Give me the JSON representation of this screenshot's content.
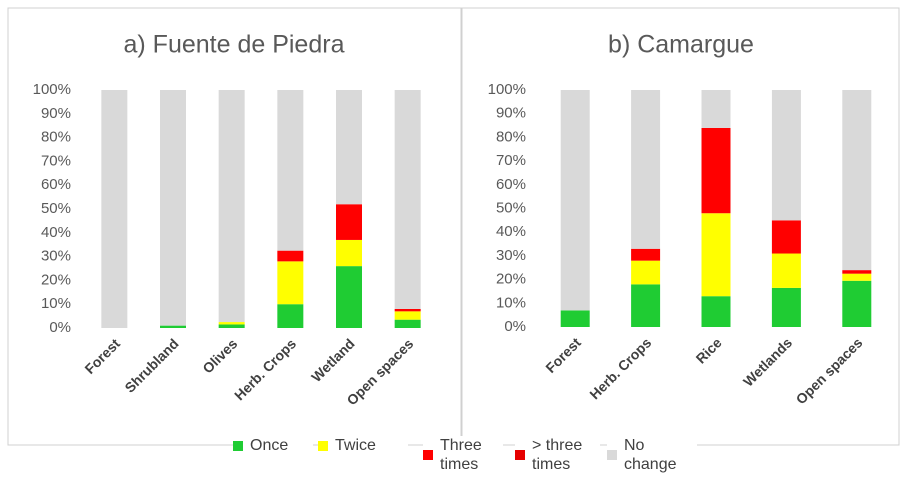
{
  "chart_data": [
    {
      "type": "stacked_bar",
      "title": "a) Fuente de Piedra",
      "categories": [
        "Forest",
        "Shrubland",
        "Olives",
        "Herb. Crops",
        "Wetland",
        "Open spaces"
      ],
      "series": [
        {
          "name": "Once",
          "color": "#1fcc33",
          "values": [
            0,
            1,
            1.5,
            10,
            26,
            3.5
          ]
        },
        {
          "name": "Twice",
          "color": "#ffff00",
          "values": [
            0,
            0,
            1,
            18,
            11,
            3.5
          ]
        },
        {
          "name": "Three times",
          "color": "#ff0000",
          "values": [
            0,
            0,
            0,
            4.5,
            15,
            1
          ]
        },
        {
          "name": "> three times",
          "color": "#e60000",
          "values": [
            0,
            0,
            0,
            0,
            0,
            0
          ]
        },
        {
          "name": "No change",
          "color": "#d9d9d9",
          "values": [
            100,
            99,
            97.5,
            67.5,
            48,
            92
          ]
        }
      ],
      "ylim": [
        0,
        100
      ],
      "yticks": [
        {
          "value": 0,
          "label": "0%"
        },
        {
          "value": 10,
          "label": "10%"
        },
        {
          "value": 20,
          "label": "20%"
        },
        {
          "value": 30,
          "label": "30%"
        },
        {
          "value": 40,
          "label": "40%"
        },
        {
          "value": 50,
          "label": "50%"
        },
        {
          "value": 60,
          "label": "60%"
        },
        {
          "value": 70,
          "label": "70%"
        },
        {
          "value": 80,
          "label": "80%"
        },
        {
          "value": 90,
          "label": "90%"
        },
        {
          "value": 100,
          "label": "100%"
        }
      ]
    },
    {
      "type": "stacked_bar",
      "title": "b) Camargue",
      "categories": [
        "Forest",
        "Herb. Crops",
        "Rice",
        "Wetlands",
        "Open spaces"
      ],
      "series": [
        {
          "name": "Once",
          "color": "#1fcc33",
          "values": [
            7,
            18,
            13,
            16.5,
            19.5
          ]
        },
        {
          "name": "Twice",
          "color": "#ffff00",
          "values": [
            0,
            10,
            35,
            14.5,
            3
          ]
        },
        {
          "name": "Three times",
          "color": "#ff0000",
          "values": [
            0,
            5,
            36,
            14,
            1.5
          ]
        },
        {
          "name": "> three times",
          "color": "#e60000",
          "values": [
            0,
            0,
            0,
            0,
            0
          ]
        },
        {
          "name": "No change",
          "color": "#d9d9d9",
          "values": [
            93,
            67,
            16,
            55,
            76
          ]
        }
      ],
      "ylim": [
        0,
        100
      ],
      "yticks": [
        {
          "value": 0,
          "label": "0%"
        },
        {
          "value": 10,
          "label": "10%"
        },
        {
          "value": 20,
          "label": "20%"
        },
        {
          "value": 30,
          "label": "30%"
        },
        {
          "value": 40,
          "label": "40%"
        },
        {
          "value": 50,
          "label": "50%"
        },
        {
          "value": 60,
          "label": "60%"
        },
        {
          "value": 70,
          "label": "70%"
        },
        {
          "value": 80,
          "label": "80%"
        },
        {
          "value": 90,
          "label": "90%"
        },
        {
          "value": 100,
          "label": "100%"
        }
      ]
    }
  ]
}
